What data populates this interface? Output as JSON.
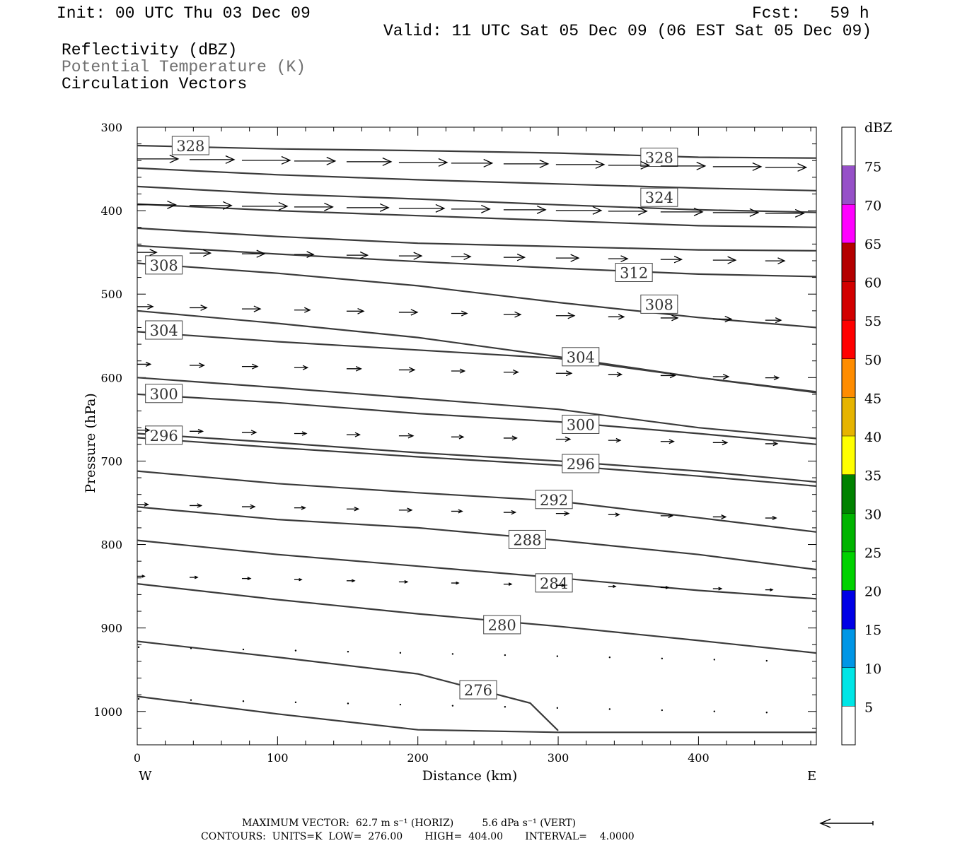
{
  "header": {
    "init": "Init: 00 UTC Thu 03 Dec 09",
    "fcst": "Fcst:   59 h",
    "valid": "Valid: 11 UTC Sat 05 Dec 09 (06 EST Sat 05 Dec 09)",
    "field1": "Reflectivity (dBZ)",
    "field2": "Potential Temperature (K)",
    "field3": "Circulation Vectors"
  },
  "footer": {
    "line1": "MAXIMUM VECTOR:  62.7 m s⁻¹ (HORIZ)         5.6 dPa s⁻¹ (VERT)",
    "line2": "CONTOURS:  UNITS=K  LOW=  276.00       HIGH=  404.00       INTERVAL=    4.0000"
  },
  "colors": {
    "contour": "#3a3a3a",
    "axis": "#000000"
  },
  "chart_data": {
    "type": "line",
    "title": "",
    "xlabel": "Distance (km)",
    "ylabel": "Pressure (hPa)",
    "xlim": [
      0,
      484
    ],
    "ylim": [
      1040,
      300
    ],
    "y_scale": "linear-inverted",
    "xticks": [
      0,
      100,
      200,
      300,
      400
    ],
    "yticks": [
      300,
      400,
      500,
      600,
      700,
      800,
      900,
      1000
    ],
    "x_end_labels": {
      "left": "W",
      "right": "E"
    },
    "colorbar": {
      "label": "dBZ",
      "levels": [
        "5",
        "10",
        "15",
        "20",
        "25",
        "30",
        "35",
        "40",
        "45",
        "50",
        "55",
        "60",
        "65",
        "70",
        "75"
      ],
      "colors": [
        "#ffffff",
        "#00e6e6",
        "#0096e6",
        "#0000e6",
        "#00d200",
        "#00b400",
        "#008200",
        "#ffff00",
        "#e6b400",
        "#ff8c00",
        "#ff0000",
        "#d20000",
        "#b40000",
        "#ff00ff",
        "#9650c8",
        "#ffffff"
      ]
    },
    "reflectivity": "none shown",
    "series": [
      {
        "name": "328",
        "label_at": [
          38,
          322
        ],
        "points": [
          [
            0,
            322
          ],
          [
            100,
            326
          ],
          [
            200,
            328
          ],
          [
            300,
            331
          ],
          [
            400,
            336
          ],
          [
            484,
            337
          ]
        ]
      },
      {
        "name": "328",
        "label_at": [
          372,
          336
        ],
        "points": [
          [
            0,
            349
          ],
          [
            100,
            357
          ],
          [
            200,
            363
          ],
          [
            300,
            368
          ],
          [
            400,
            373
          ],
          [
            484,
            376
          ]
        ]
      },
      {
        "name": "324",
        "label_at": [
          372,
          384
        ],
        "points": [
          [
            0,
            371
          ],
          [
            100,
            380
          ],
          [
            200,
            386
          ],
          [
            300,
            393
          ],
          [
            400,
            399
          ],
          [
            484,
            402
          ]
        ]
      },
      {
        "name": "",
        "label_at": null,
        "points": [
          [
            0,
            392
          ],
          [
            100,
            400
          ],
          [
            200,
            406
          ],
          [
            300,
            412
          ],
          [
            400,
            418
          ],
          [
            484,
            420
          ]
        ]
      },
      {
        "name": "",
        "label_at": null,
        "points": [
          [
            0,
            421
          ],
          [
            100,
            431
          ],
          [
            200,
            439
          ],
          [
            300,
            443
          ],
          [
            400,
            447
          ],
          [
            484,
            448
          ]
        ]
      },
      {
        "name": "312",
        "label_at": [
          354,
          474
        ],
        "points": [
          [
            0,
            442
          ],
          [
            100,
            452
          ],
          [
            200,
            461
          ],
          [
            300,
            469
          ],
          [
            400,
            476
          ],
          [
            484,
            479
          ]
        ]
      },
      {
        "name": "308",
        "label_at": [
          19,
          465
        ],
        "points": [
          [
            0,
            463
          ],
          [
            100,
            475
          ],
          [
            200,
            490
          ],
          [
            300,
            510
          ],
          [
            400,
            528
          ],
          [
            484,
            540
          ]
        ]
      },
      {
        "name": "308",
        "label_at": [
          372,
          512
        ],
        "points": [
          [
            0,
            520
          ],
          [
            100,
            535
          ],
          [
            200,
            552
          ],
          [
            300,
            575
          ],
          [
            400,
            600
          ],
          [
            484,
            618
          ]
        ]
      },
      {
        "name": "304",
        "label_at": [
          19,
          543
        ],
        "points": [
          [
            0,
            545
          ],
          [
            100,
            557
          ],
          [
            200,
            567
          ],
          [
            300,
            577
          ],
          [
            400,
            600
          ],
          [
            484,
            617
          ]
        ]
      },
      {
        "name": "304",
        "label_at": [
          316,
          575
        ],
        "points": [
          [
            0,
            600
          ],
          [
            100,
            612
          ],
          [
            200,
            625
          ],
          [
            300,
            638
          ],
          [
            400,
            660
          ],
          [
            484,
            673
          ]
        ]
      },
      {
        "name": "300",
        "label_at": [
          19,
          619
        ],
        "points": [
          [
            0,
            620
          ],
          [
            100,
            630
          ],
          [
            200,
            643
          ],
          [
            300,
            653
          ],
          [
            400,
            667
          ],
          [
            484,
            680
          ]
        ]
      },
      {
        "name": "300",
        "label_at": [
          316,
          656
        ],
        "points": [
          [
            0,
            672
          ],
          [
            100,
            684
          ],
          [
            200,
            695
          ],
          [
            300,
            705
          ],
          [
            400,
            718
          ],
          [
            484,
            730
          ]
        ]
      },
      {
        "name": "296",
        "label_at": [
          19,
          669
        ],
        "points": [
          [
            0,
            667
          ],
          [
            100,
            678
          ],
          [
            200,
            690
          ],
          [
            300,
            700
          ],
          [
            400,
            712
          ],
          [
            484,
            725
          ]
        ]
      },
      {
        "name": "296",
        "label_at": [
          316,
          703
        ],
        "points": [
          [
            0,
            712
          ],
          [
            100,
            727
          ],
          [
            200,
            738
          ],
          [
            300,
            748
          ],
          [
            400,
            768
          ],
          [
            484,
            785
          ]
        ]
      },
      {
        "name": "292",
        "label_at": [
          297,
          746
        ],
        "points": [
          [
            0,
            755
          ],
          [
            100,
            770
          ],
          [
            200,
            780
          ],
          [
            300,
            795
          ],
          [
            400,
            812
          ],
          [
            484,
            830
          ]
        ]
      },
      {
        "name": "288",
        "label_at": [
          278,
          794
        ],
        "points": [
          [
            0,
            795
          ],
          [
            100,
            812
          ],
          [
            200,
            826
          ],
          [
            300,
            840
          ],
          [
            400,
            855
          ],
          [
            484,
            865
          ]
        ]
      },
      {
        "name": "284",
        "label_at": [
          297,
          846
        ],
        "points": [
          [
            0,
            847
          ],
          [
            100,
            866
          ],
          [
            200,
            883
          ],
          [
            300,
            898
          ],
          [
            400,
            915
          ],
          [
            484,
            930
          ]
        ]
      },
      {
        "name": "280",
        "label_at": [
          260,
          896
        ],
        "points": [
          [
            0,
            916
          ],
          [
            100,
            935
          ],
          [
            200,
            955
          ],
          [
            280,
            990
          ],
          [
            300,
            1023
          ]
        ]
      },
      {
        "name": "276",
        "label_at": [
          243,
          974
        ],
        "points": [
          [
            0,
            982
          ],
          [
            100,
            1003
          ],
          [
            200,
            1022
          ],
          [
            300,
            1025
          ],
          [
            400,
            1025
          ],
          [
            484,
            1025
          ]
        ]
      }
    ],
    "vectors_note": "circulation vectors pointing east, length decreasing downward"
  }
}
